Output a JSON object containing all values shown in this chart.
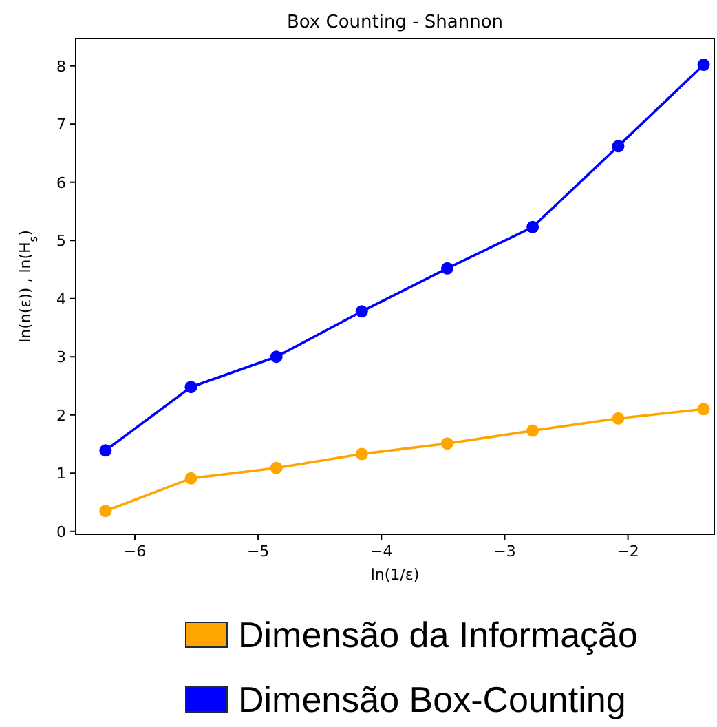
{
  "chart_data": {
    "type": "line",
    "title": "Box Counting - Shannon",
    "xlabel": "ln(1/ε)",
    "ylabel": "ln(n(ε)) , ln(H$_{s}$)",
    "x": [
      -6.238,
      -5.545,
      -4.852,
      -4.159,
      -3.466,
      -2.773,
      -2.079,
      -1.386
    ],
    "series": [
      {
        "name": "Dimensão da Informação",
        "color": "#ffa500",
        "values": [
          0.35,
          0.91,
          1.09,
          1.33,
          1.51,
          1.73,
          1.94,
          2.1
        ]
      },
      {
        "name": "Dimensão Box-Counting",
        "color": "#0000ff",
        "values": [
          1.39,
          2.48,
          3.0,
          3.78,
          4.52,
          5.23,
          6.62,
          8.02
        ]
      }
    ],
    "xlim": [
      -6.48,
      -1.3
    ],
    "xticks": [
      {
        "value": -6,
        "label": "−6"
      },
      {
        "value": -5,
        "label": "−5"
      },
      {
        "value": -4,
        "label": "−4"
      },
      {
        "value": -3,
        "label": "−3"
      },
      {
        "value": -2,
        "label": "−2"
      }
    ],
    "ylim": [
      -0.05,
      8.47
    ],
    "yticks": [
      0,
      1,
      2,
      3,
      4,
      5,
      6,
      7,
      8
    ],
    "marker": "circle",
    "grid": false,
    "legend": "bottom"
  }
}
